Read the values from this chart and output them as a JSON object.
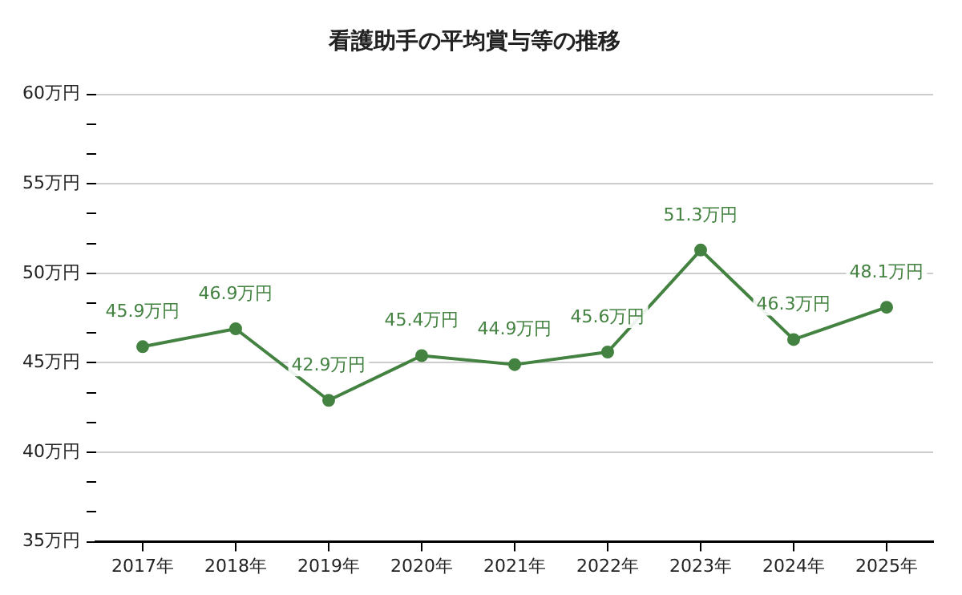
{
  "chart_data": {
    "type": "line",
    "title": "看護助手の平均賞与等の推移",
    "categories": [
      "2017年",
      "2018年",
      "2019年",
      "2020年",
      "2021年",
      "2022年",
      "2023年",
      "2024年",
      "2025年"
    ],
    "series": [
      {
        "color": "#438241",
        "values": [
          45.9,
          46.9,
          42.9,
          45.4,
          44.9,
          45.6,
          51.3,
          46.3,
          48.1
        ],
        "value_labels": [
          "45.9万円",
          "46.9万円",
          "42.9万円",
          "45.4万円",
          "44.9万円",
          "45.6万円",
          "51.3万円",
          "46.3万円",
          "48.1万円"
        ]
      }
    ],
    "ylim": [
      35,
      60
    ],
    "yticks": [
      {
        "value": 35,
        "label": "35万円"
      },
      {
        "value": 36.67,
        "label": null
      },
      {
        "value": 38.33,
        "label": null
      },
      {
        "value": 40,
        "label": "40万円"
      },
      {
        "value": 41.67,
        "label": null
      },
      {
        "value": 43.33,
        "label": null
      },
      {
        "value": 45,
        "label": "45万円"
      },
      {
        "value": 46.67,
        "label": null
      },
      {
        "value": 48.33,
        "label": null
      },
      {
        "value": 50,
        "label": "50万円"
      },
      {
        "value": 51.67,
        "label": null
      },
      {
        "value": 53.33,
        "label": null
      },
      {
        "value": 55,
        "label": "55万円"
      },
      {
        "value": 56.67,
        "label": null
      },
      {
        "value": 58.33,
        "label": null
      },
      {
        "value": 60,
        "label": "60万円"
      }
    ],
    "grid": "y",
    "legend": false,
    "marker": "circle",
    "line_style": "solid"
  }
}
